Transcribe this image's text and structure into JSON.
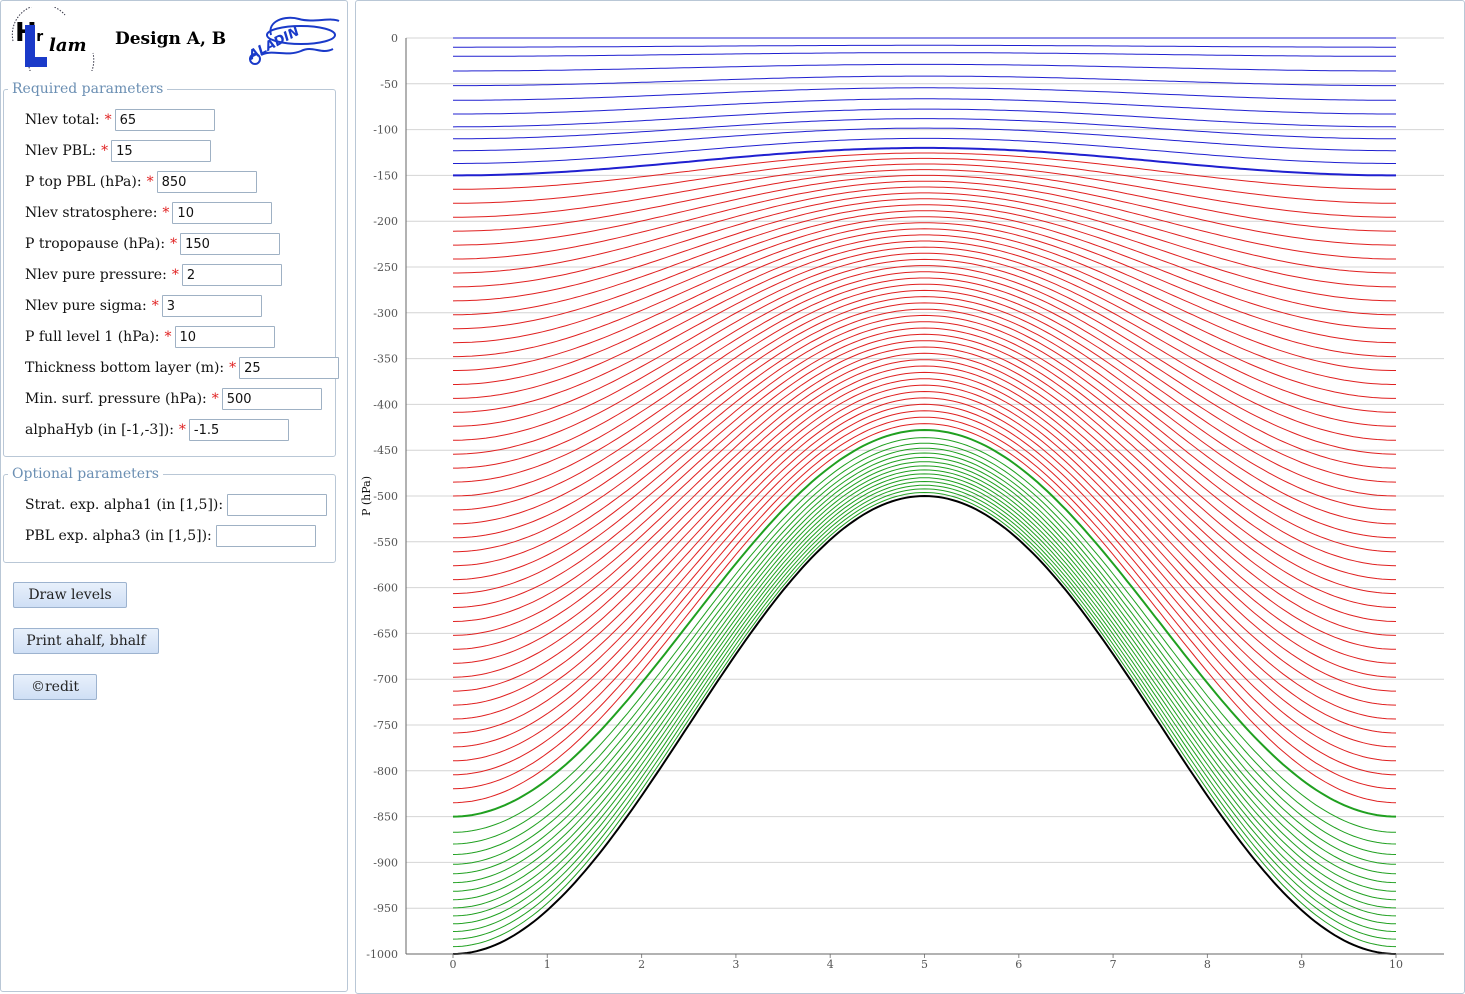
{
  "header": {
    "title": "Design A, B",
    "hirlam_logo_text": "HIRLAM",
    "aladin_logo_text": "ALADIN"
  },
  "required": {
    "legend": "Required parameters",
    "fields": [
      {
        "label": "Nlev total:",
        "value": "65"
      },
      {
        "label": "Nlev PBL:",
        "value": "15"
      },
      {
        "label": "P top PBL (hPa):",
        "value": "850"
      },
      {
        "label": "Nlev stratosphere:",
        "value": "10"
      },
      {
        "label": "P tropopause (hPa):",
        "value": "150"
      },
      {
        "label": "Nlev pure pressure:",
        "value": "2"
      },
      {
        "label": "Nlev pure sigma:",
        "value": "3"
      },
      {
        "label": "P full level 1 (hPa):",
        "value": "10"
      },
      {
        "label": "Thickness bottom layer (m):",
        "value": "25"
      },
      {
        "label": "Min. surf. pressure (hPa):",
        "value": "500"
      },
      {
        "label": "alphaHyb (in [-1,-3]):",
        "value": "-1.5"
      }
    ],
    "required_mark": "*"
  },
  "optional": {
    "legend": "Optional parameters",
    "fields": [
      {
        "label": "Strat. exp. alpha1 (in [1,5]):",
        "value": ""
      },
      {
        "label": "PBL exp. alpha3 (in [1,5]):",
        "value": ""
      }
    ]
  },
  "buttons": {
    "draw": "Draw levels",
    "print": "Print ahalf, bhalf",
    "credit": "©redit"
  },
  "chart_data": {
    "type": "line",
    "ylabel": "P (hPa)",
    "xlabel": "",
    "xlim": [
      0,
      10
    ],
    "ylim": [
      -1000,
      0
    ],
    "x_ticks": [
      "0",
      "1",
      "2",
      "3",
      "4",
      "5",
      "6",
      "7",
      "8",
      "9",
      "10"
    ],
    "y_ticks": [
      "0",
      "-50",
      "-100",
      "-150",
      "-200",
      "-250",
      "-300",
      "-350",
      "-400",
      "-450",
      "-500",
      "-550",
      "-600",
      "-650",
      "-700",
      "-750",
      "-800",
      "-850",
      "-900",
      "-950",
      "-1000"
    ],
    "grid": true,
    "surface_pressure": {
      "min": 500,
      "max": 1000,
      "shape": "cosine hill, minimum at x=5"
    },
    "series": [
      {
        "group": "stratosphere",
        "color": "#2020d0",
        "count": 10,
        "left_edge_values": [
          0,
          -10,
          -20,
          -36,
          -52,
          -68,
          -83,
          -97,
          -110,
          -123,
          -137,
          -150
        ],
        "bold_boundary": -150
      },
      {
        "group": "troposphere",
        "color": "#e02020",
        "left_edge_range": [
          -150,
          -850
        ],
        "center_range": [
          -120,
          -428
        ]
      },
      {
        "group": "pbl",
        "color": "#20a020",
        "count": 15,
        "left_edge_range": [
          -850,
          -1000
        ],
        "center_range": [
          -428,
          -500
        ]
      },
      {
        "group": "surface",
        "color": "#000000",
        "left_edge": -1000,
        "center": -500
      }
    ]
  }
}
